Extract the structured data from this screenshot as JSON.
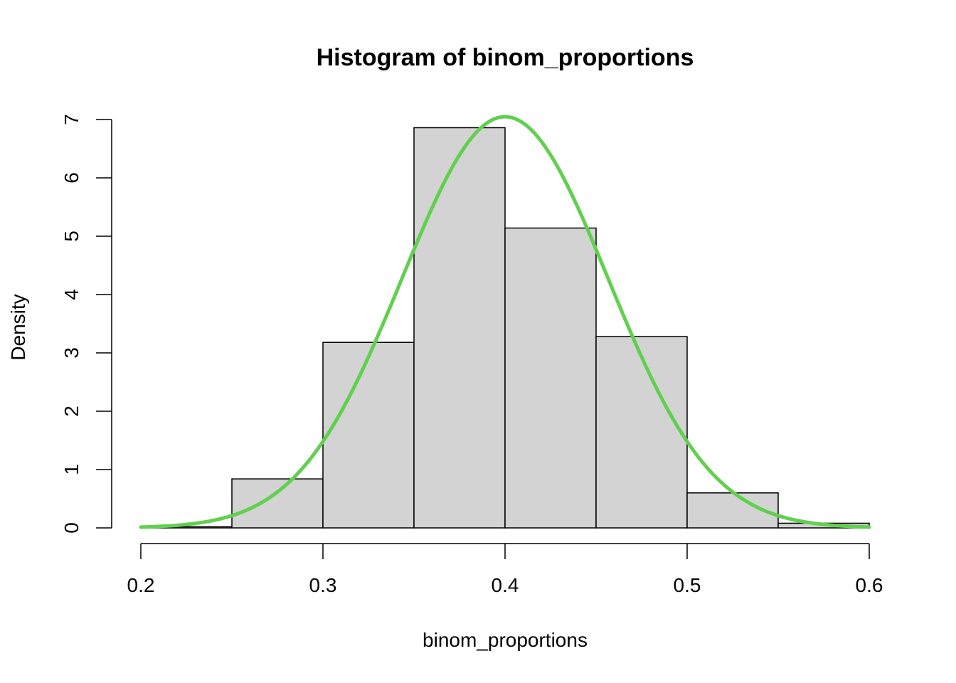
{
  "chart_data": {
    "type": "bar",
    "title": "Histogram of binom_proportions",
    "xlabel": "binom_proportions",
    "ylabel": "Density",
    "bins": [
      {
        "from": 0.2,
        "to": 0.25,
        "density": 0.02
      },
      {
        "from": 0.25,
        "to": 0.3,
        "density": 0.84
      },
      {
        "from": 0.3,
        "to": 0.35,
        "density": 3.18
      },
      {
        "from": 0.35,
        "to": 0.4,
        "density": 6.86
      },
      {
        "from": 0.4,
        "to": 0.45,
        "density": 5.14
      },
      {
        "from": 0.45,
        "to": 0.5,
        "density": 3.28
      },
      {
        "from": 0.5,
        "to": 0.55,
        "density": 0.6
      },
      {
        "from": 0.55,
        "to": 0.6,
        "density": 0.08
      }
    ],
    "xticks": [
      "0.2",
      "0.3",
      "0.4",
      "0.5",
      "0.6"
    ],
    "yticks": [
      "0",
      "1",
      "2",
      "3",
      "4",
      "5",
      "6",
      "7"
    ],
    "xlim": [
      0.2,
      0.6
    ],
    "ylim": [
      0,
      7
    ],
    "overlay_curve": {
      "type": "normal-density",
      "mean": 0.4,
      "sd": 0.0566,
      "from": 0.2,
      "to": 0.6,
      "color": "#61d04f"
    },
    "bar_fill": "#d3d3d3",
    "grid": false
  }
}
